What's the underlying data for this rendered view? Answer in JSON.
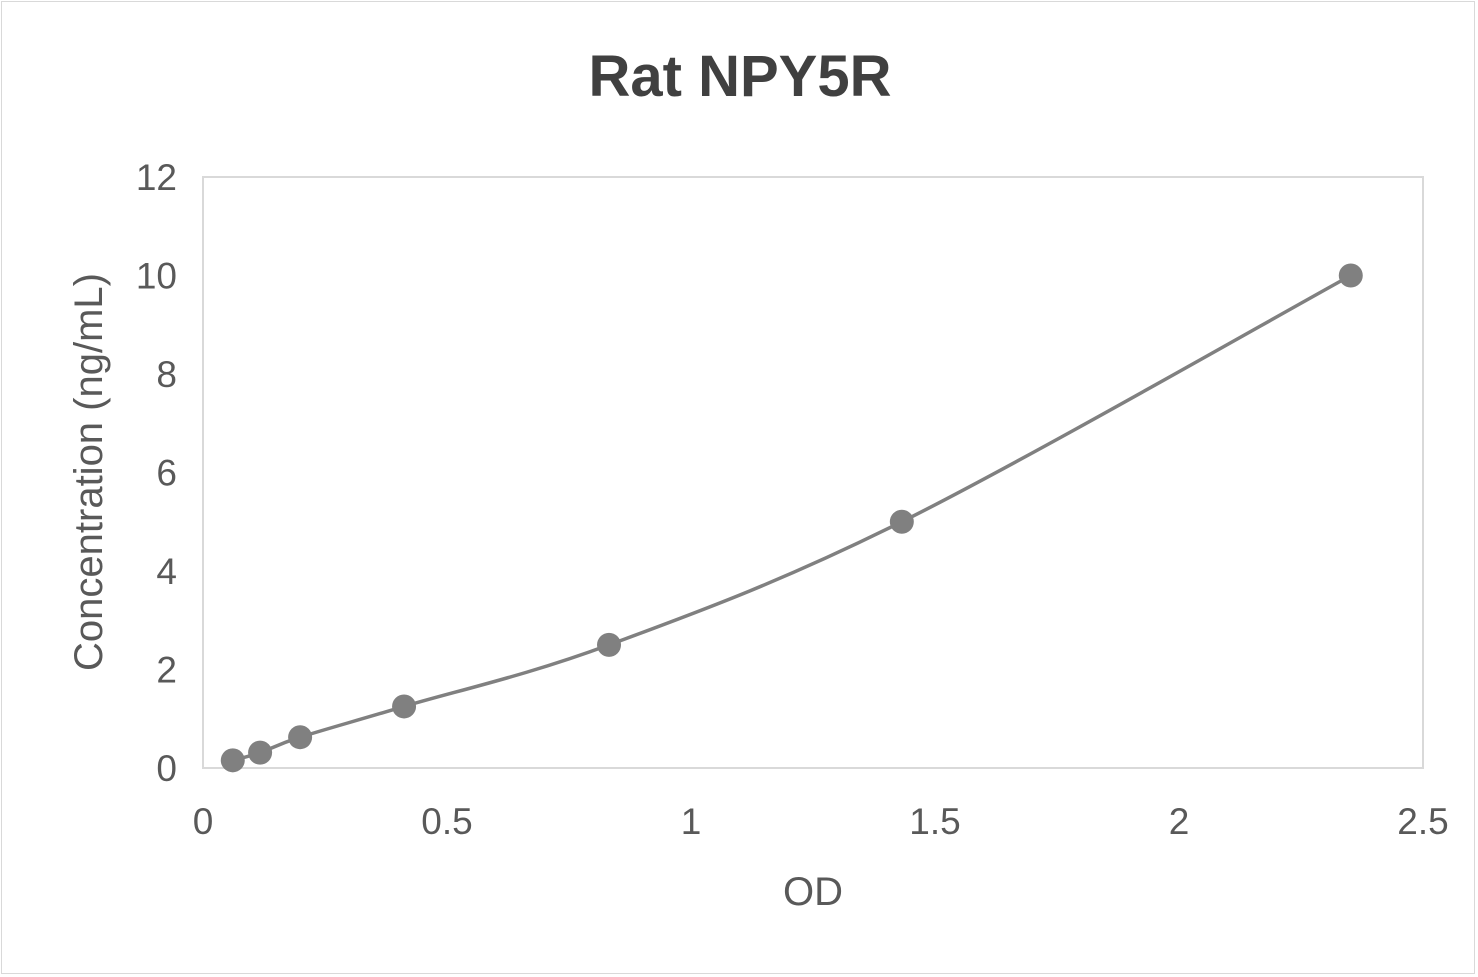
{
  "chart_data": {
    "type": "scatter",
    "title": "Rat NPY5R",
    "xlabel": "OD",
    "ylabel": "Concentration (ng/mL)",
    "xlim": [
      0,
      2.5
    ],
    "ylim": [
      0,
      12
    ],
    "xticks": [
      "0",
      "0.5",
      "1",
      "1.5",
      "2",
      "2.5"
    ],
    "yticks": [
      "0",
      "2",
      "4",
      "6",
      "8",
      "10",
      "12"
    ],
    "grid": false,
    "smooth_line": true,
    "series": [
      {
        "x": [
          0.061,
          0.117,
          0.199,
          0.412,
          0.832,
          1.432,
          2.352
        ],
        "y": [
          0.156,
          0.312,
          0.625,
          1.25,
          2.5,
          5,
          10
        ],
        "color": "#808080"
      }
    ]
  }
}
